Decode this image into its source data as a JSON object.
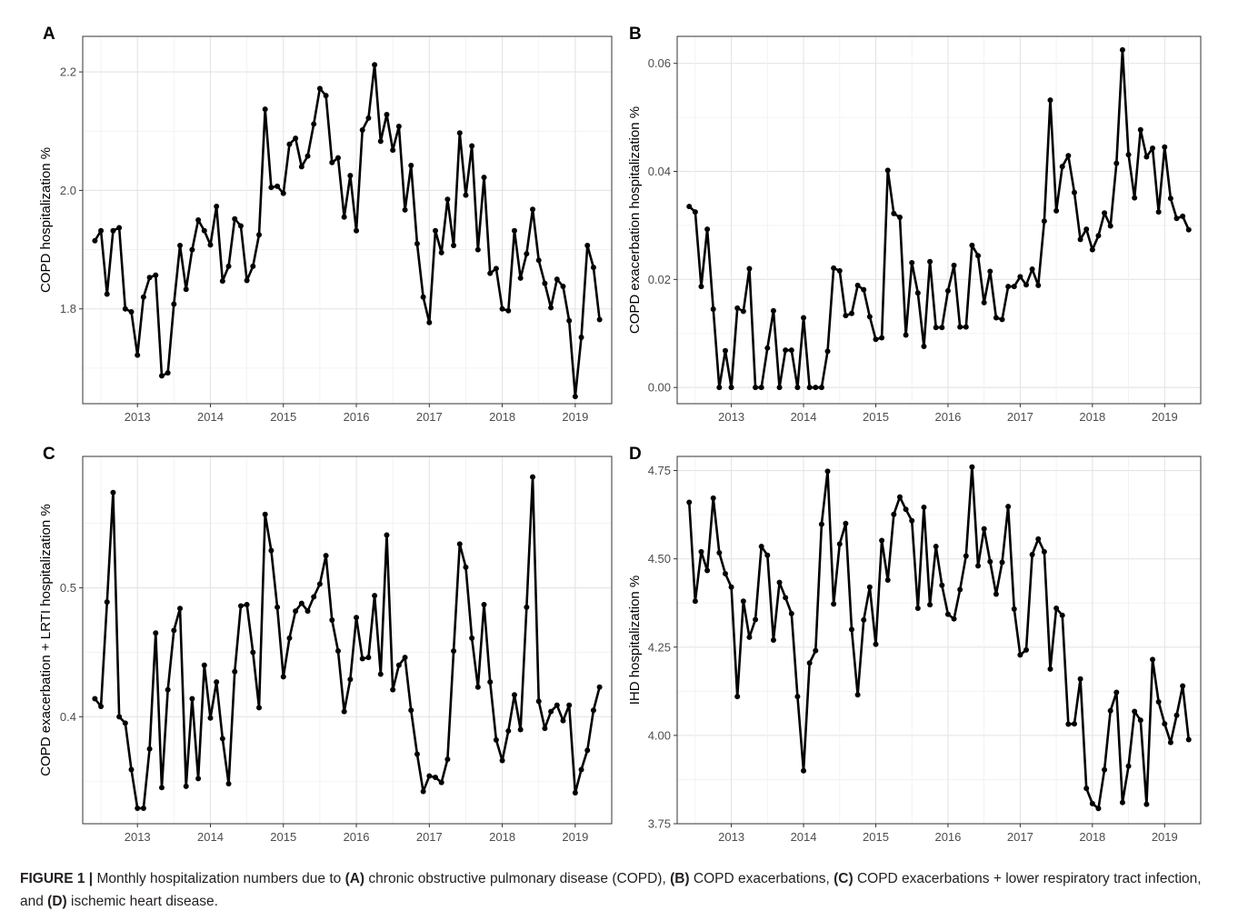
{
  "caption": {
    "figure_label": "FIGURE 1 |",
    "segments": [
      {
        "text": " Monthly hospitalization numbers due to ",
        "bold": false
      },
      {
        "text": "(A)",
        "bold": true
      },
      {
        "text": " chronic obstructive pulmonary disease (COPD), ",
        "bold": false
      },
      {
        "text": "(B)",
        "bold": true
      },
      {
        "text": " COPD exacerbations, ",
        "bold": false
      },
      {
        "text": "(C)",
        "bold": true
      },
      {
        "text": " COPD exacerbations + lower respiratory tract infection, and ",
        "bold": false
      },
      {
        "text": "(D)",
        "bold": true
      },
      {
        "text": " ischemic heart disease.",
        "bold": false
      }
    ]
  },
  "chart_data": [
    {
      "panel": "A",
      "type": "line",
      "ylabel": "COPD hospitalization %",
      "x_ticks": [
        "2013",
        "2014",
        "2015",
        "2016",
        "2017",
        "2018",
        "2019"
      ],
      "y_ticks": [
        "1.8",
        "2.0",
        "2.2"
      ],
      "ylim": [
        1.64,
        2.26
      ],
      "xlim": [
        "2012-04",
        "2019-07"
      ],
      "grid": true,
      "x_start": "2012-06",
      "values": [
        1.915,
        1.932,
        1.825,
        1.932,
        1.937,
        1.8,
        1.795,
        1.722,
        1.82,
        1.853,
        1.857,
        1.687,
        1.692,
        1.808,
        1.907,
        1.833,
        1.9,
        1.95,
        1.932,
        1.908,
        1.973,
        1.847,
        1.872,
        1.952,
        1.94,
        1.848,
        1.872,
        1.925,
        2.137,
        2.005,
        2.007,
        1.995,
        2.078,
        2.088,
        2.04,
        2.058,
        2.112,
        2.172,
        2.16,
        2.047,
        2.055,
        1.955,
        2.025,
        1.932,
        2.102,
        2.122,
        2.212,
        2.083,
        2.128,
        2.068,
        2.108,
        1.967,
        2.042,
        1.91,
        1.82,
        1.777,
        1.932,
        1.895,
        1.985,
        1.907,
        2.097,
        1.992,
        2.075,
        1.9,
        2.022,
        1.86,
        1.868,
        1.8,
        1.797,
        1.932,
        1.852,
        1.893,
        1.968,
        1.882,
        1.843,
        1.802,
        1.85,
        1.838,
        1.78,
        1.652,
        1.752,
        1.907,
        1.87,
        1.782
      ]
    },
    {
      "panel": "B",
      "type": "line",
      "ylabel": "COPD exacerbation hospitalization %",
      "x_ticks": [
        "2013",
        "2014",
        "2015",
        "2016",
        "2017",
        "2018",
        "2019"
      ],
      "y_ticks": [
        "0.00",
        "0.02",
        "0.04",
        "0.06"
      ],
      "ylim": [
        -0.003,
        0.065
      ],
      "xlim": [
        "2012-04",
        "2019-07"
      ],
      "grid": true,
      "x_start": "2012-06",
      "values": [
        0.0335,
        0.0325,
        0.0187,
        0.0293,
        0.0145,
        0.0,
        0.0068,
        0.0,
        0.0147,
        0.0141,
        0.022,
        0.0,
        0.0,
        0.0073,
        0.0142,
        0.0,
        0.0069,
        0.0069,
        0.0,
        0.0129,
        0.0,
        0.0,
        0.0,
        0.0067,
        0.0221,
        0.0216,
        0.0133,
        0.0137,
        0.0189,
        0.0181,
        0.0131,
        0.0089,
        0.0092,
        0.0402,
        0.0322,
        0.0315,
        0.0097,
        0.0231,
        0.0175,
        0.0076,
        0.0233,
        0.0111,
        0.0111,
        0.0179,
        0.0226,
        0.0112,
        0.0112,
        0.0263,
        0.0244,
        0.0157,
        0.0215,
        0.0129,
        0.0126,
        0.0187,
        0.0187,
        0.0205,
        0.019,
        0.0219,
        0.0189,
        0.0308,
        0.0532,
        0.0327,
        0.0409,
        0.0429,
        0.0361,
        0.0274,
        0.0293,
        0.0255,
        0.0281,
        0.0323,
        0.0299,
        0.0415,
        0.0625,
        0.0431,
        0.0351,
        0.0477,
        0.0427,
        0.0443,
        0.0325,
        0.0445,
        0.035,
        0.0313,
        0.0317,
        0.0292
      ]
    },
    {
      "panel": "C",
      "type": "line",
      "ylabel": "COPD exacerbation + LRTI hospitalization %",
      "x_ticks": [
        "2013",
        "2014",
        "2015",
        "2016",
        "2017",
        "2018",
        "2019"
      ],
      "y_ticks": [
        "0.4",
        "0.5"
      ],
      "ylim": [
        0.317,
        0.602
      ],
      "xlim": [
        "2012-04",
        "2019-07"
      ],
      "grid": true,
      "x_start": "2012-06",
      "values": [
        0.414,
        0.408,
        0.489,
        0.574,
        0.4,
        0.395,
        0.359,
        0.329,
        0.329,
        0.375,
        0.465,
        0.345,
        0.421,
        0.467,
        0.484,
        0.346,
        0.414,
        0.352,
        0.44,
        0.399,
        0.427,
        0.383,
        0.348,
        0.435,
        0.486,
        0.487,
        0.45,
        0.407,
        0.557,
        0.529,
        0.485,
        0.431,
        0.461,
        0.482,
        0.488,
        0.482,
        0.493,
        0.503,
        0.525,
        0.475,
        0.451,
        0.404,
        0.429,
        0.477,
        0.445,
        0.446,
        0.494,
        0.433,
        0.541,
        0.421,
        0.44,
        0.446,
        0.405,
        0.371,
        0.342,
        0.354,
        0.353,
        0.349,
        0.367,
        0.451,
        0.534,
        0.516,
        0.461,
        0.423,
        0.487,
        0.427,
        0.382,
        0.366,
        0.389,
        0.417,
        0.39,
        0.485,
        0.586,
        0.412,
        0.391,
        0.404,
        0.409,
        0.397,
        0.409,
        0.341,
        0.359,
        0.374,
        0.405,
        0.423
      ]
    },
    {
      "panel": "D",
      "type": "line",
      "ylabel": "IHD hospitalization %",
      "x_ticks": [
        "2013",
        "2014",
        "2015",
        "2016",
        "2017",
        "2018",
        "2019"
      ],
      "y_ticks": [
        "3.75",
        "4.00",
        "4.25",
        "4.50",
        "4.75"
      ],
      "ylim": [
        3.75,
        4.79
      ],
      "xlim": [
        "2012-04",
        "2019-07"
      ],
      "grid": true,
      "x_start": "2012-06",
      "values": [
        4.66,
        4.38,
        4.52,
        4.467,
        4.672,
        4.517,
        4.458,
        4.42,
        4.11,
        4.38,
        4.278,
        4.328,
        4.535,
        4.51,
        4.27,
        4.433,
        4.39,
        4.345,
        4.11,
        3.9,
        4.205,
        4.24,
        4.598,
        4.748,
        4.372,
        4.542,
        4.6,
        4.3,
        4.115,
        4.327,
        4.42,
        4.258,
        4.552,
        4.44,
        4.626,
        4.675,
        4.64,
        4.608,
        4.36,
        4.646,
        4.37,
        4.535,
        4.425,
        4.343,
        4.33,
        4.413,
        4.508,
        4.76,
        4.48,
        4.585,
        4.492,
        4.4,
        4.49,
        4.648,
        4.358,
        4.228,
        4.242,
        4.512,
        4.556,
        4.52,
        4.188,
        4.36,
        4.34,
        4.032,
        4.033,
        4.16,
        3.85,
        3.807,
        3.793,
        3.903,
        4.07,
        4.122,
        3.81,
        3.913,
        4.068,
        4.043,
        3.805,
        4.215,
        4.095,
        4.033,
        3.98,
        4.057,
        4.14,
        3.988
      ]
    }
  ]
}
